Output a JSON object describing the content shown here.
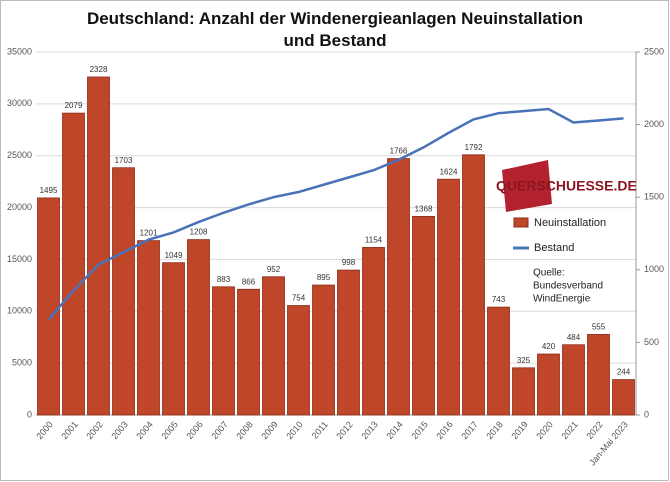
{
  "chart_data": {
    "type": "bar_line",
    "title": "Deutschland: Anzahl der Windenergieanlagen Neuinstallation und Bestand",
    "categories": [
      "2000",
      "2001",
      "2002",
      "2003",
      "2004",
      "2005",
      "2006",
      "2007",
      "2008",
      "2009",
      "2010",
      "2011",
      "2012",
      "2013",
      "2014",
      "2015",
      "2016",
      "2017",
      "2018",
      "2019",
      "2020",
      "2021",
      "2022",
      "Jan-Mai 2023"
    ],
    "series": [
      {
        "name": "Neuinstallation",
        "type": "bar",
        "axis": "y2",
        "color": "#c0462a",
        "values": [
          1495,
          2079,
          2328,
          1703,
          1201,
          1049,
          1208,
          883,
          866,
          952,
          754,
          895,
          998,
          1154,
          1766,
          1368,
          1624,
          1792,
          743,
          325,
          420,
          484,
          555,
          244
        ]
      },
      {
        "name": "Bestand",
        "type": "line",
        "axis": "y",
        "color": "#4a72b8",
        "values": [
          9200,
          12000,
          14500,
          15700,
          16900,
          17600,
          18600,
          19500,
          20300,
          21000,
          21500,
          22200,
          22900,
          23600,
          24600,
          25800,
          27200,
          28500,
          29100,
          29300,
          29500,
          28200,
          28400,
          28600
        ]
      }
    ],
    "ylim": [
      0,
      35000
    ],
    "yticks": [
      0,
      5000,
      10000,
      15000,
      20000,
      25000,
      30000,
      35000
    ],
    "y2lim": [
      0,
      2500
    ],
    "y2ticks": [
      0,
      500,
      1000,
      1500,
      2000,
      2500
    ],
    "grid": true,
    "logo": "QUERSCHUESSE.DE",
    "source": [
      "Quelle:",
      "Bundesverband",
      "WindEnergie"
    ]
  }
}
